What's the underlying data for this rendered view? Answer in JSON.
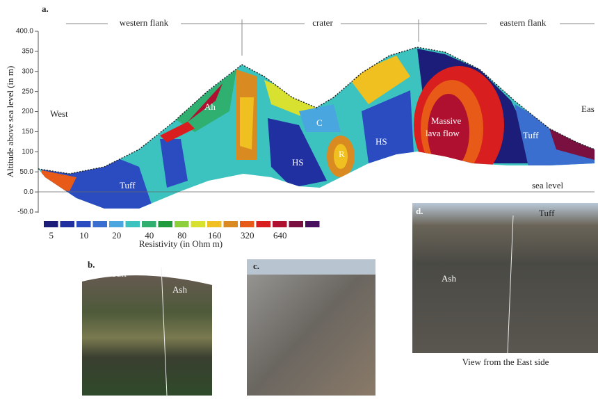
{
  "panel_a": {
    "label": "a.",
    "zones": [
      "western flank",
      "crater",
      "eastern flank"
    ],
    "west": "West",
    "east": "Eas",
    "sea_level": "sea level",
    "y_axis_title": "Altitude above sea level (in m)",
    "y_ticks": [
      "400.0",
      "350",
      "300",
      "250",
      "200",
      "150",
      "100",
      "50.0",
      "0.0",
      "-50.0"
    ],
    "units": {
      "ah": "Ah",
      "c": "C",
      "hs1": "HS",
      "hs2": "HS",
      "r": "R",
      "lava": [
        "Massive",
        "lava flow"
      ],
      "tuff_w": "Tuff",
      "tuff_e": "Tuff"
    },
    "colorbar": {
      "title": "Resistivity (in Ohm m)",
      "tick_labels": [
        "5",
        "10",
        "20",
        "40",
        "80",
        "160",
        "320",
        "640"
      ],
      "colors": [
        "#1c1d78",
        "#2130a0",
        "#2a4cc0",
        "#3a6fd0",
        "#4aa6de",
        "#3cc3c0",
        "#2fb070",
        "#1f9a3c",
        "#8ccf3a",
        "#d8e030",
        "#f0c020",
        "#d98a20",
        "#e85a18",
        "#d81e1e",
        "#b01030",
        "#7a1040",
        "#4a1060"
      ]
    }
  },
  "panel_b": {
    "label": "b.",
    "tuff": "Tuff",
    "ash": "Ash"
  },
  "panel_c": {
    "label": "c."
  },
  "panel_d": {
    "label": "d.",
    "tuff": "Tuff",
    "ash": "Ash",
    "caption": "View from the East side"
  }
}
